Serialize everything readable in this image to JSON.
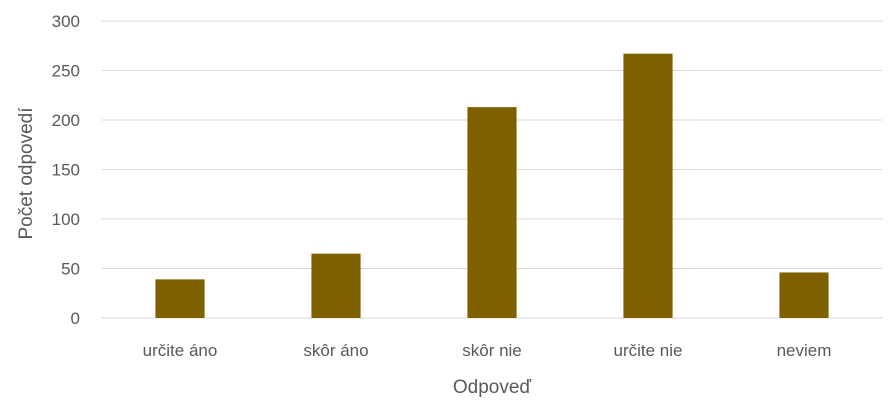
{
  "chart_data": {
    "type": "bar",
    "title": "",
    "xlabel": "Odpoveď",
    "ylabel": "Počet odpovedí",
    "categories": [
      "určite áno",
      "skôr áno",
      "skôr nie",
      "určite nie",
      "neviem"
    ],
    "values": [
      39,
      65,
      213,
      267,
      46
    ],
    "ylim": [
      0,
      300
    ],
    "yticks": [
      0,
      50,
      100,
      150,
      200,
      250,
      300
    ],
    "grid": true,
    "legend": "none",
    "colors": {
      "bar": "#7F6000",
      "grid": "#D9D9D9",
      "text": "#595959"
    }
  }
}
